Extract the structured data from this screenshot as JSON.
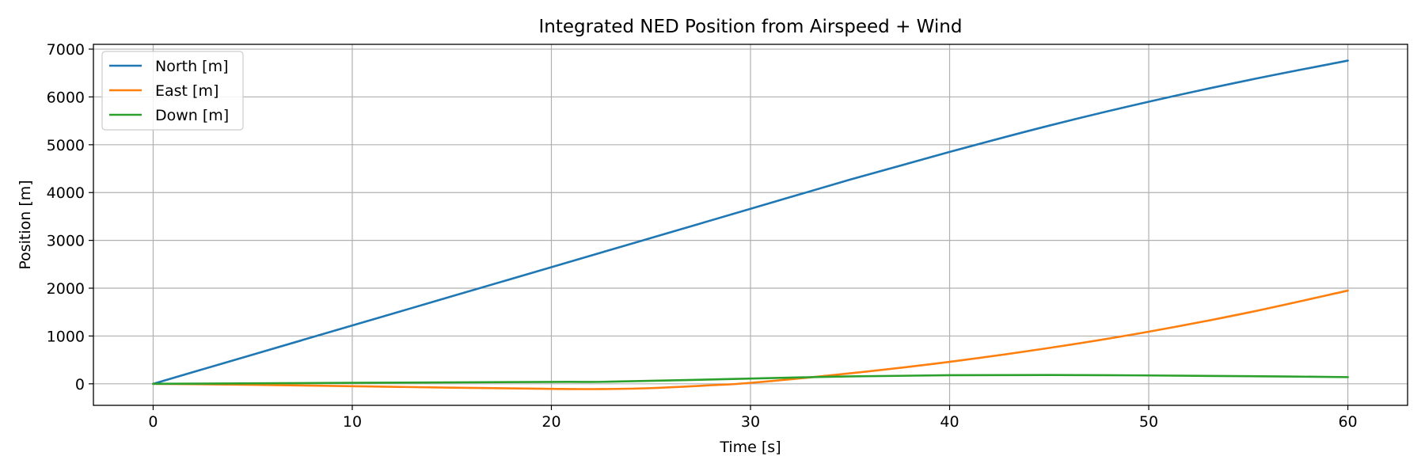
{
  "chart_data": {
    "type": "line",
    "title": "Integrated NED Position from Airspeed + Wind",
    "xlabel": "Time [s]",
    "ylabel": "Position [m]",
    "xlim": [
      -3,
      63
    ],
    "ylim": [
      -450,
      7100
    ],
    "xticks": [
      0,
      10,
      20,
      30,
      40,
      50,
      60
    ],
    "yticks": [
      0,
      1000,
      2000,
      3000,
      4000,
      5000,
      6000,
      7000
    ],
    "grid": true,
    "legend_position": "upper-left",
    "series": [
      {
        "name": "North [m]",
        "color": "#1f77b4",
        "x": [
          0,
          5,
          10,
          15,
          20,
          25,
          30,
          35,
          40,
          45,
          50,
          55,
          60
        ],
        "y": [
          0,
          610,
          1220,
          1830,
          2440,
          3050,
          3660,
          4270,
          4850,
          5400,
          5900,
          6350,
          6760
        ]
      },
      {
        "name": "East [m]",
        "color": "#ff7f0e",
        "x": [
          0,
          5,
          10,
          15,
          20,
          22.5,
          25,
          28,
          30,
          35,
          40,
          45,
          50,
          55,
          60
        ],
        "y": [
          0,
          -20,
          -50,
          -80,
          -105,
          -110,
          -90,
          -30,
          20,
          220,
          460,
          750,
          1090,
          1490,
          1950
        ]
      },
      {
        "name": "Down [m]",
        "color": "#2ca02c",
        "x": [
          0,
          10,
          20,
          23,
          30,
          35,
          40,
          45,
          50,
          55,
          60
        ],
        "y": [
          0,
          20,
          40,
          45,
          110,
          155,
          180,
          185,
          175,
          160,
          140
        ]
      }
    ]
  }
}
